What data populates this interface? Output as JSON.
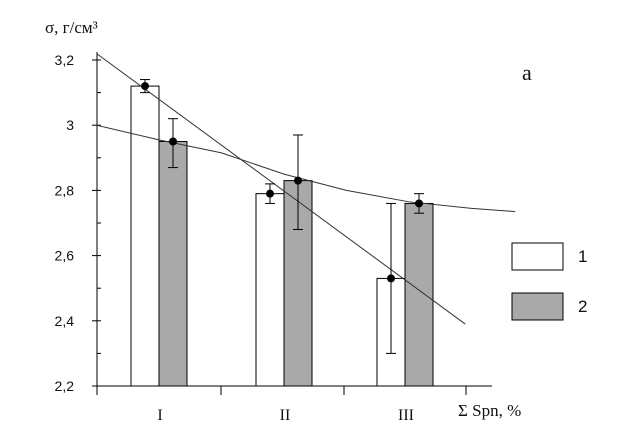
{
  "chart_data": {
    "type": "bar",
    "panel_label": "а",
    "ylabel": "σ, г/см³",
    "xlabel": "Σ Spn, %",
    "categories": [
      "I",
      "II",
      "III"
    ],
    "ylim": [
      2.2,
      3.2
    ],
    "yticks": [
      2.2,
      2.4,
      2.6,
      2.8,
      3.0,
      3.2
    ],
    "ytick_labels": [
      "2,2",
      "2,4",
      "2,6",
      "2,8",
      "3",
      "3,2"
    ],
    "series": [
      {
        "name": "1",
        "color": "#ffffff",
        "values": [
          3.12,
          2.79,
          2.53
        ],
        "err_low": [
          3.1,
          2.76,
          2.3
        ],
        "err_high": [
          3.14,
          2.82,
          2.76
        ]
      },
      {
        "name": "2",
        "color": "#a9a9a9",
        "values": [
          2.95,
          2.83,
          2.76
        ],
        "err_low": [
          2.87,
          2.68,
          2.73
        ],
        "err_high": [
          3.02,
          2.97,
          2.79
        ]
      }
    ],
    "trend_lines": [
      {
        "series": "1",
        "kind": "linear",
        "from": [
          0.5,
          3.22
        ],
        "to": [
          3.45,
          2.39
        ]
      },
      {
        "series": "2",
        "kind": "curve",
        "points": [
          [
            0.5,
            3.0
          ],
          [
            1.0,
            2.955
          ],
          [
            1.5,
            2.915
          ],
          [
            2.0,
            2.85
          ],
          [
            2.5,
            2.8
          ],
          [
            3.0,
            2.765
          ],
          [
            3.5,
            2.745
          ],
          [
            3.85,
            2.735
          ]
        ]
      }
    ],
    "grid": false,
    "legend": "right"
  }
}
